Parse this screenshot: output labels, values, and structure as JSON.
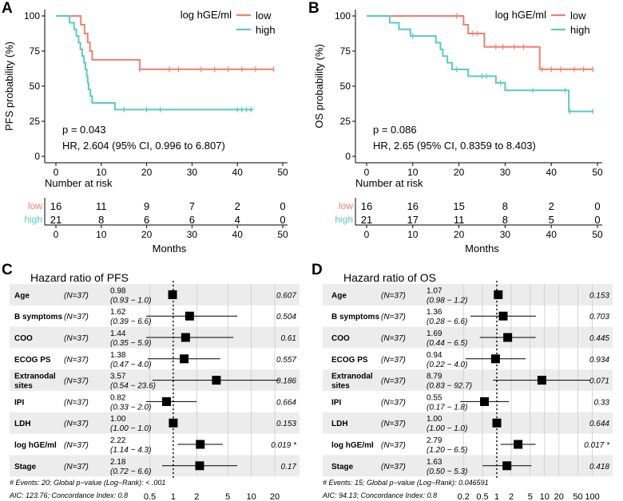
{
  "colors": {
    "low": "#f08070",
    "high": "#5cc8c8",
    "grid": "#d4d4d4",
    "row_shade": "#ececec",
    "axis": "#000000"
  },
  "chart_data": [
    {
      "type": "line",
      "panel": "A",
      "ylabel": "PFS probability (%)",
      "xlabel": "Months",
      "x_ticks": [
        0,
        10,
        20,
        30,
        40,
        50
      ],
      "y_ticks": [
        0,
        25,
        50,
        75,
        100
      ],
      "xlim": [
        0,
        50
      ],
      "ylim": [
        0,
        100
      ],
      "legend": {
        "title": "log hGE/ml",
        "position": "top-right",
        "items": [
          "low",
          "high"
        ]
      },
      "series": [
        {
          "name": "low",
          "color": "#f08070",
          "steps": [
            [
              0,
              100
            ],
            [
              5.5,
              93.75
            ],
            [
              6.3,
              87.5
            ],
            [
              7,
              81.25
            ],
            [
              7.5,
              75
            ],
            [
              8,
              68.75
            ],
            [
              18.5,
              62
            ]
          ],
          "end_x": 48,
          "censor_x": [
            18.5,
            25,
            27,
            32,
            35,
            38,
            41,
            44,
            48
          ]
        },
        {
          "name": "high",
          "color": "#5cc8c8",
          "steps": [
            [
              0,
              100
            ],
            [
              3,
              95.2
            ],
            [
              4,
              90.5
            ],
            [
              4.5,
              85.7
            ],
            [
              5,
              81
            ],
            [
              5.4,
              76.2
            ],
            [
              5.8,
              71.4
            ],
            [
              6.2,
              66.7
            ],
            [
              6.5,
              61.9
            ],
            [
              6.8,
              57.1
            ],
            [
              7,
              52.4
            ],
            [
              7.2,
              47.6
            ],
            [
              7.6,
              42.9
            ],
            [
              8,
              38.1
            ],
            [
              13,
              33.3
            ]
          ],
          "end_x": 43.5,
          "censor_x": [
            15,
            20,
            23,
            40,
            41,
            42,
            43
          ]
        }
      ],
      "annotations": [
        "p = 0.043",
        "HR, 2.604 (95% CI, 0.996 to 6.807)"
      ],
      "risk_table": {
        "title": "Number at risk",
        "times": [
          0,
          10,
          20,
          30,
          40,
          50
        ],
        "rows": [
          {
            "label": "low",
            "counts": [
              16,
              11,
              9,
              7,
              2,
              0
            ]
          },
          {
            "label": "high",
            "counts": [
              21,
              8,
              6,
              6,
              4,
              0
            ]
          }
        ]
      }
    },
    {
      "type": "line",
      "panel": "B",
      "ylabel": "OS probability (%)",
      "xlabel": "Months",
      "x_ticks": [
        0,
        10,
        20,
        30,
        40,
        50
      ],
      "y_ticks": [
        0,
        25,
        50,
        75,
        100
      ],
      "xlim": [
        0,
        50
      ],
      "ylim": [
        0,
        100
      ],
      "legend": {
        "title": "log hGE/ml",
        "position": "top-right",
        "items": [
          "low",
          "high"
        ]
      },
      "series": [
        {
          "name": "low",
          "color": "#f08070",
          "steps": [
            [
              0,
              100
            ],
            [
              21,
              93.75
            ],
            [
              22,
              87.5
            ],
            [
              25.5,
              78
            ],
            [
              37.5,
              62
            ]
          ],
          "end_x": 49,
          "censor_x": [
            19.5,
            23,
            24,
            28,
            29.5,
            32,
            34,
            38,
            40,
            42,
            45,
            47,
            49
          ]
        },
        {
          "name": "high",
          "color": "#5cc8c8",
          "steps": [
            [
              0,
              100
            ],
            [
              5,
              95.2
            ],
            [
              7,
              90.5
            ],
            [
              9.5,
              85.7
            ],
            [
              15,
              81
            ],
            [
              16,
              76.2
            ],
            [
              16.5,
              71.4
            ],
            [
              17.5,
              66.7
            ],
            [
              18.5,
              61.9
            ],
            [
              22,
              57.1
            ],
            [
              28,
              52.4
            ],
            [
              30,
              47
            ],
            [
              43.8,
              32
            ]
          ],
          "end_x": 49,
          "censor_x": [
            10,
            19.5,
            25,
            26,
            29,
            36,
            43,
            44,
            49
          ]
        }
      ],
      "annotations": [
        "p = 0.086",
        "HR, 2.65 (95% CI, 0.8359 to 8.403)"
      ],
      "risk_table": {
        "title": "Number at risk",
        "times": [
          0,
          10,
          20,
          30,
          40,
          50
        ],
        "rows": [
          {
            "label": "low",
            "counts": [
              16,
              16,
              15,
              8,
              2,
              0
            ]
          },
          {
            "label": "high",
            "counts": [
              21,
              17,
              11,
              8,
              5,
              0
            ]
          }
        ]
      }
    },
    {
      "type": "forest",
      "panel": "C",
      "title": "Hazard ratio of PFS",
      "axis": {
        "scale": "log",
        "ticks": [
          0.5,
          1,
          2,
          5,
          10,
          20
        ],
        "ref": 1,
        "min": 0.45,
        "max": 23
      },
      "rows": [
        {
          "name": "Age",
          "n": "(N=37)",
          "hr": 0.98,
          "lo": 0.93,
          "hi": 1.0,
          "hr_text": "0.98",
          "ci_text": "(0.93 − 1.0)",
          "p": "0.607"
        },
        {
          "name": "B symptoms",
          "n": "(N=37)",
          "hr": 1.62,
          "lo": 0.39,
          "hi": 6.6,
          "hr_text": "1.62",
          "ci_text": "(0.39 − 6.6)",
          "p": "0.504"
        },
        {
          "name": "COO",
          "n": "(N=37)",
          "hr": 1.44,
          "lo": 0.35,
          "hi": 5.9,
          "hr_text": "1.44",
          "ci_text": "(0.35 − 5.9)",
          "p": "0.61"
        },
        {
          "name": "ECOG PS",
          "n": "(N=37)",
          "hr": 1.38,
          "lo": 0.47,
          "hi": 4.0,
          "hr_text": "1.38",
          "ci_text": "(0.47 − 4.0)",
          "p": "0.557"
        },
        {
          "name": "Extranodal sites",
          "n": "(N=37)",
          "hr": 3.57,
          "lo": 0.54,
          "hi": 23.6,
          "hr_text": "3.57",
          "ci_text": "(0.54 − 23.6)",
          "p": "0.186"
        },
        {
          "name": "IPI",
          "n": "(N=37)",
          "hr": 0.82,
          "lo": 0.33,
          "hi": 2.0,
          "hr_text": "0.82",
          "ci_text": "(0.33 − 2.0)",
          "p": "0.664"
        },
        {
          "name": "LDH",
          "n": "(N=37)",
          "hr": 1.0,
          "lo": 1.0,
          "hi": 1.0,
          "hr_text": "1.00",
          "ci_text": "(1.00 − 1.0)",
          "p": "0.153"
        },
        {
          "name": "log hGE/ml",
          "n": "(N=37)",
          "hr": 2.22,
          "lo": 1.14,
          "hi": 4.3,
          "hr_text": "2.22",
          "ci_text": "(1.14 − 4.3)",
          "p": "0.019 *"
        },
        {
          "name": "Stage",
          "n": "(N=37)",
          "hr": 2.18,
          "lo": 0.72,
          "hi": 6.6,
          "hr_text": "2.18",
          "ci_text": "(0.72 − 6.6)",
          "p": "0.17"
        }
      ],
      "footnotes": [
        "# Events: 20; Global p−value (Log−Rank): < .001",
        "AIC: 123.76; Concordance Index: 0.8"
      ]
    },
    {
      "type": "forest",
      "panel": "D",
      "title": "Hazard ratio of OS",
      "axis": {
        "scale": "log",
        "ticks": [
          0.2,
          0.5,
          1,
          2,
          5,
          10,
          20,
          50,
          100
        ],
        "ref": 1,
        "min": 0.12,
        "max": 110
      },
      "rows": [
        {
          "name": "Age",
          "n": "(N=37)",
          "hr": 1.07,
          "lo": 0.98,
          "hi": 1.2,
          "hr_text": "1.07",
          "ci_text": "(0.98 − 1.2)",
          "p": "0.153"
        },
        {
          "name": "B symptoms",
          "n": "(N=37)",
          "hr": 1.36,
          "lo": 0.28,
          "hi": 6.6,
          "hr_text": "1.36",
          "ci_text": "(0.28 − 6.6)",
          "p": "0.703"
        },
        {
          "name": "COO",
          "n": "(N=37)",
          "hr": 1.69,
          "lo": 0.44,
          "hi": 6.5,
          "hr_text": "1.69",
          "ci_text": "(0.44 − 6.5)",
          "p": "0.445"
        },
        {
          "name": "ECOG PS",
          "n": "(N=37)",
          "hr": 0.94,
          "lo": 0.22,
          "hi": 4.0,
          "hr_text": "0.94",
          "ci_text": "(0.22 − 4.0)",
          "p": "0.934"
        },
        {
          "name": "Extranodal sites",
          "n": "(N=37)",
          "hr": 8.79,
          "lo": 0.83,
          "hi": 92.7,
          "hr_text": "8.79",
          "ci_text": "(0.83 − 92.7)",
          "p": "0.071"
        },
        {
          "name": "IPI",
          "n": "(N=37)",
          "hr": 0.55,
          "lo": 0.17,
          "hi": 1.8,
          "hr_text": "0.55",
          "ci_text": "(0.17 − 1.8)",
          "p": "0.33"
        },
        {
          "name": "LDH",
          "n": "(N=37)",
          "hr": 1.0,
          "lo": 1.0,
          "hi": 1.0,
          "hr_text": "1.00",
          "ci_text": "(1.00 − 1.0)",
          "p": "0.644"
        },
        {
          "name": "log hGE/ml",
          "n": "(N=37)",
          "hr": 2.79,
          "lo": 1.2,
          "hi": 6.5,
          "hr_text": "2.79",
          "ci_text": "(1.20 − 6.5)",
          "p": "0.017 *"
        },
        {
          "name": "Stage",
          "n": "(N=37)",
          "hr": 1.63,
          "lo": 0.5,
          "hi": 5.3,
          "hr_text": "1.63",
          "ci_text": "(0.50 − 5.3)",
          "p": "0.418"
        }
      ],
      "footnotes": [
        "# Events: 15; Global p−value (Log−Rank): 0.046591",
        "AIC: 94.13; Concordance Index: 0.8"
      ]
    }
  ]
}
